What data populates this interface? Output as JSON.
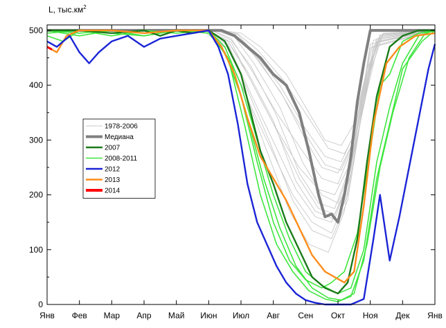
{
  "chart_data": {
    "type": "line",
    "ylabel": "L, тыс.км",
    "ylabel_superscript": "2",
    "ylim": [
      0,
      510
    ],
    "yticks": [
      0,
      100,
      200,
      300,
      400,
      500
    ],
    "xlim": [
      0,
      12
    ],
    "xticks": [
      "Янв",
      "Фев",
      "Мар",
      "Апр",
      "Май",
      "Июн",
      "Июл",
      "Авг",
      "Сен",
      "Окт",
      "Ноя",
      "Дек",
      "Янв"
    ],
    "grid": false,
    "legend_position": "left-center",
    "colors": {
      "historic": "#c8c8c8",
      "median": "#808080",
      "y2007": "#1a7a1a",
      "y2008_2011": "#3ee63e",
      "y2012": "#1a24d6",
      "y2013": "#ff8c1a",
      "y2014": "#ff0000"
    },
    "legend": [
      {
        "key": "historic",
        "label": "1978-2006"
      },
      {
        "key": "median",
        "label": "Медиана"
      },
      {
        "key": "y2007",
        "label": "2007"
      },
      {
        "key": "y2008_2011",
        "label": "2008-2011"
      },
      {
        "key": "y2012",
        "label": "2012"
      },
      {
        "key": "y2013",
        "label": "2013"
      },
      {
        "key": "y2014",
        "label": "2014"
      }
    ],
    "historic_series": [
      {
        "x": [
          0,
          5.0,
          5.6,
          6.2,
          7.0,
          7.8,
          8.4,
          8.9,
          9.4,
          9.8,
          10.2,
          12
        ],
        "y": [
          500,
          500,
          480,
          420,
          330,
          250,
          210,
          200,
          260,
          380,
          480,
          500
        ]
      },
      {
        "x": [
          0,
          5.2,
          5.8,
          6.5,
          7.3,
          8.0,
          8.5,
          9.0,
          9.5,
          9.9,
          10.3,
          12
        ],
        "y": [
          500,
          500,
          490,
          450,
          380,
          300,
          250,
          240,
          300,
          410,
          490,
          500
        ]
      },
      {
        "x": [
          0,
          4.8,
          5.5,
          6.0,
          6.8,
          7.6,
          8.2,
          8.8,
          9.3,
          9.7,
          10.1,
          12
        ],
        "y": [
          500,
          500,
          470,
          400,
          300,
          200,
          150,
          130,
          200,
          340,
          470,
          500
        ]
      },
      {
        "x": [
          0,
          5.4,
          6.0,
          6.6,
          7.4,
          8.1,
          8.6,
          9.1,
          9.5,
          9.9,
          10.4,
          12
        ],
        "y": [
          500,
          500,
          495,
          470,
          420,
          350,
          300,
          290,
          330,
          430,
          495,
          500
        ]
      },
      {
        "x": [
          0,
          5.1,
          5.7,
          6.3,
          7.1,
          7.9,
          8.5,
          9.0,
          9.4,
          9.8,
          10.2,
          12
        ],
        "y": [
          500,
          500,
          485,
          430,
          350,
          280,
          230,
          220,
          280,
          400,
          485,
          500
        ]
      },
      {
        "x": [
          0,
          5.0,
          5.6,
          6.1,
          6.9,
          7.7,
          8.3,
          8.8,
          9.3,
          9.7,
          10.0,
          12
        ],
        "y": [
          500,
          500,
          475,
          410,
          310,
          210,
          160,
          150,
          220,
          360,
          475,
          500
        ]
      },
      {
        "x": [
          0,
          5.3,
          5.9,
          6.4,
          7.2,
          8.0,
          8.6,
          9.1,
          9.5,
          9.9,
          10.3,
          12
        ],
        "y": [
          500,
          500,
          492,
          460,
          400,
          320,
          270,
          260,
          310,
          420,
          492,
          500
        ]
      },
      {
        "x": [
          0,
          4.9,
          5.5,
          6.1,
          6.8,
          7.5,
          8.1,
          8.7,
          9.2,
          9.6,
          10.0,
          12
        ],
        "y": [
          500,
          500,
          468,
          390,
          280,
          170,
          110,
          95,
          170,
          320,
          468,
          500
        ]
      },
      {
        "x": [
          0,
          5.2,
          5.8,
          6.4,
          7.2,
          7.9,
          8.5,
          9.0,
          9.4,
          9.9,
          10.3,
          12
        ],
        "y": [
          500,
          500,
          488,
          440,
          360,
          260,
          200,
          185,
          250,
          390,
          488,
          500
        ]
      },
      {
        "x": [
          0,
          5.0,
          5.7,
          6.2,
          7.0,
          7.8,
          8.4,
          8.9,
          9.4,
          9.8,
          10.2,
          12
        ],
        "y": [
          500,
          500,
          478,
          420,
          330,
          230,
          175,
          165,
          235,
          370,
          478,
          500
        ]
      },
      {
        "x": [
          0,
          5.1,
          5.7,
          6.3,
          7.1,
          7.8,
          8.4,
          8.9,
          9.3,
          9.7,
          10.1,
          12
        ],
        "y": [
          500,
          500,
          482,
          435,
          345,
          240,
          185,
          175,
          240,
          375,
          482,
          500
        ]
      },
      {
        "x": [
          0,
          5.3,
          5.9,
          6.5,
          7.3,
          8.1,
          8.7,
          9.2,
          9.6,
          10.0,
          10.4,
          12
        ],
        "y": [
          500,
          500,
          494,
          465,
          410,
          340,
          285,
          275,
          320,
          425,
          494,
          500
        ]
      },
      {
        "x": [
          0,
          4.9,
          5.6,
          6.1,
          6.9,
          7.6,
          8.2,
          8.8,
          9.3,
          9.7,
          10.1,
          12
        ],
        "y": [
          500,
          500,
          472,
          405,
          295,
          190,
          135,
          120,
          190,
          335,
          472,
          500
        ]
      },
      {
        "x": [
          0,
          5.0,
          5.6,
          6.2,
          7.0,
          7.7,
          8.3,
          8.9,
          9.3,
          9.8,
          10.2,
          12
        ],
        "y": [
          500,
          500,
          480,
          425,
          335,
          225,
          170,
          155,
          225,
          365,
          480,
          500
        ]
      },
      {
        "x": [
          0,
          5.2,
          5.8,
          6.4,
          7.2,
          8.0,
          8.6,
          9.1,
          9.5,
          9.9,
          10.3,
          12
        ],
        "y": [
          500,
          500,
          490,
          455,
          390,
          310,
          255,
          245,
          300,
          415,
          490,
          500
        ]
      }
    ],
    "series": [
      {
        "key": "median",
        "name": "Медиана",
        "width": 4,
        "x": [
          0,
          5.4,
          5.8,
          6.2,
          6.6,
          7.0,
          7.4,
          7.8,
          8.1,
          8.4,
          8.6,
          8.8,
          9.0,
          9.2,
          9.4,
          9.6,
          9.8,
          10.0,
          12
        ],
        "y": [
          500,
          500,
          490,
          470,
          450,
          420,
          400,
          350,
          280,
          200,
          160,
          165,
          150,
          200,
          270,
          370,
          440,
          500,
          500
        ]
      },
      {
        "key": "y2008_2011",
        "name": "2008-2011",
        "width": 1.6,
        "x": [
          0,
          0.5,
          1.0,
          2.0,
          3.0,
          4.0,
          5.0,
          5.5,
          6.0,
          6.5,
          7.0,
          7.5,
          8.0,
          8.5,
          8.8,
          9.2,
          9.6,
          10.0,
          10.3,
          10.6,
          11.0,
          11.5,
          12
        ],
        "y": [
          490,
          480,
          500,
          495,
          490,
          500,
          495,
          460,
          380,
          260,
          150,
          80,
          45,
          30,
          40,
          60,
          130,
          280,
          400,
          420,
          480,
          495,
          500
        ]
      },
      {
        "key": "y2008_2011",
        "name": "2008-2011",
        "width": 1.6,
        "x": [
          0,
          1.0,
          2.0,
          3.0,
          4.0,
          5.0,
          5.6,
          6.1,
          6.6,
          7.1,
          7.6,
          8.1,
          8.6,
          9.0,
          9.4,
          9.8,
          10.2,
          10.6,
          11.0,
          11.6,
          12
        ],
        "y": [
          500,
          490,
          500,
          490,
          500,
          500,
          450,
          330,
          200,
          110,
          60,
          25,
          10,
          5,
          15,
          80,
          230,
          330,
          430,
          480,
          500
        ]
      },
      {
        "key": "y2008_2011",
        "name": "2008-2011",
        "width": 1.6,
        "x": [
          0,
          1.0,
          2.0,
          3.0,
          4.0,
          5.0,
          5.5,
          6.0,
          6.5,
          7.0,
          7.5,
          8.0,
          8.5,
          9.0,
          9.4,
          9.8,
          10.2,
          10.6,
          11.0,
          11.5,
          12
        ],
        "y": [
          495,
          500,
          490,
          500,
          495,
          500,
          470,
          400,
          300,
          200,
          120,
          60,
          35,
          20,
          30,
          100,
          260,
          360,
          440,
          490,
          500
        ]
      },
      {
        "key": "y2008_2011",
        "name": "2008-2011",
        "width": 1.6,
        "x": [
          0,
          1.0,
          2.0,
          3.0,
          4.0,
          5.0,
          5.7,
          6.2,
          6.7,
          7.2,
          7.7,
          8.2,
          8.7,
          9.1,
          9.5,
          9.9,
          10.3,
          10.7,
          11.2,
          11.7,
          12
        ],
        "y": [
          500,
          495,
          500,
          495,
          500,
          500,
          440,
          340,
          230,
          140,
          70,
          30,
          12,
          8,
          20,
          110,
          250,
          350,
          450,
          495,
          500
        ]
      },
      {
        "key": "y2007",
        "name": "2007",
        "width": 2.4,
        "x": [
          0,
          1.0,
          2.0,
          3.0,
          3.5,
          4.0,
          4.5,
          5.0,
          5.5,
          6.0,
          6.3,
          6.6,
          7.0,
          7.4,
          7.8,
          8.2,
          8.6,
          9.0,
          9.3,
          9.6,
          9.9,
          10.2,
          10.6,
          11.0,
          11.5,
          12
        ],
        "y": [
          500,
          500,
          495,
          500,
          490,
          500,
          495,
          500,
          480,
          420,
          350,
          280,
          220,
          150,
          100,
          50,
          30,
          20,
          40,
          120,
          260,
          380,
          470,
          490,
          500,
          500
        ]
      },
      {
        "key": "y2013",
        "name": "2013",
        "width": 2.4,
        "x": [
          0,
          0.3,
          0.6,
          1.0,
          2.0,
          3.0,
          4.0,
          5.0,
          5.4,
          5.8,
          6.2,
          6.6,
          7.0,
          7.4,
          7.8,
          8.2,
          8.6,
          8.9,
          9.2,
          9.5,
          9.8,
          10.1,
          10.5,
          10.9,
          11.4,
          12
        ],
        "y": [
          470,
          460,
          490,
          500,
          500,
          495,
          500,
          500,
          470,
          420,
          340,
          270,
          230,
          190,
          140,
          90,
          60,
          50,
          40,
          60,
          180,
          330,
          440,
          470,
          490,
          495
        ]
      },
      {
        "key": "y2012",
        "name": "2012",
        "width": 2.4,
        "x": [
          0,
          0.3,
          0.7,
          1.0,
          1.3,
          1.6,
          2.0,
          2.5,
          3.0,
          3.5,
          4.0,
          4.5,
          5.0,
          5.3,
          5.6,
          5.9,
          6.2,
          6.5,
          6.8,
          7.1,
          7.4,
          7.7,
          8.0,
          8.3,
          8.6,
          9.0,
          9.4,
          9.8,
          10.1,
          10.3,
          10.6,
          10.9,
          11.2,
          11.5,
          11.8,
          12
        ],
        "y": [
          480,
          470,
          490,
          460,
          440,
          460,
          480,
          490,
          470,
          485,
          490,
          495,
          500,
          470,
          420,
          330,
          220,
          150,
          110,
          70,
          40,
          20,
          8,
          3,
          0,
          0,
          0,
          10,
          120,
          200,
          80,
          160,
          250,
          340,
          430,
          475
        ]
      },
      {
        "key": "y2014",
        "name": "2014",
        "width": 3,
        "x": [
          0,
          0.15
        ],
        "y": [
          470,
          465
        ]
      }
    ]
  }
}
